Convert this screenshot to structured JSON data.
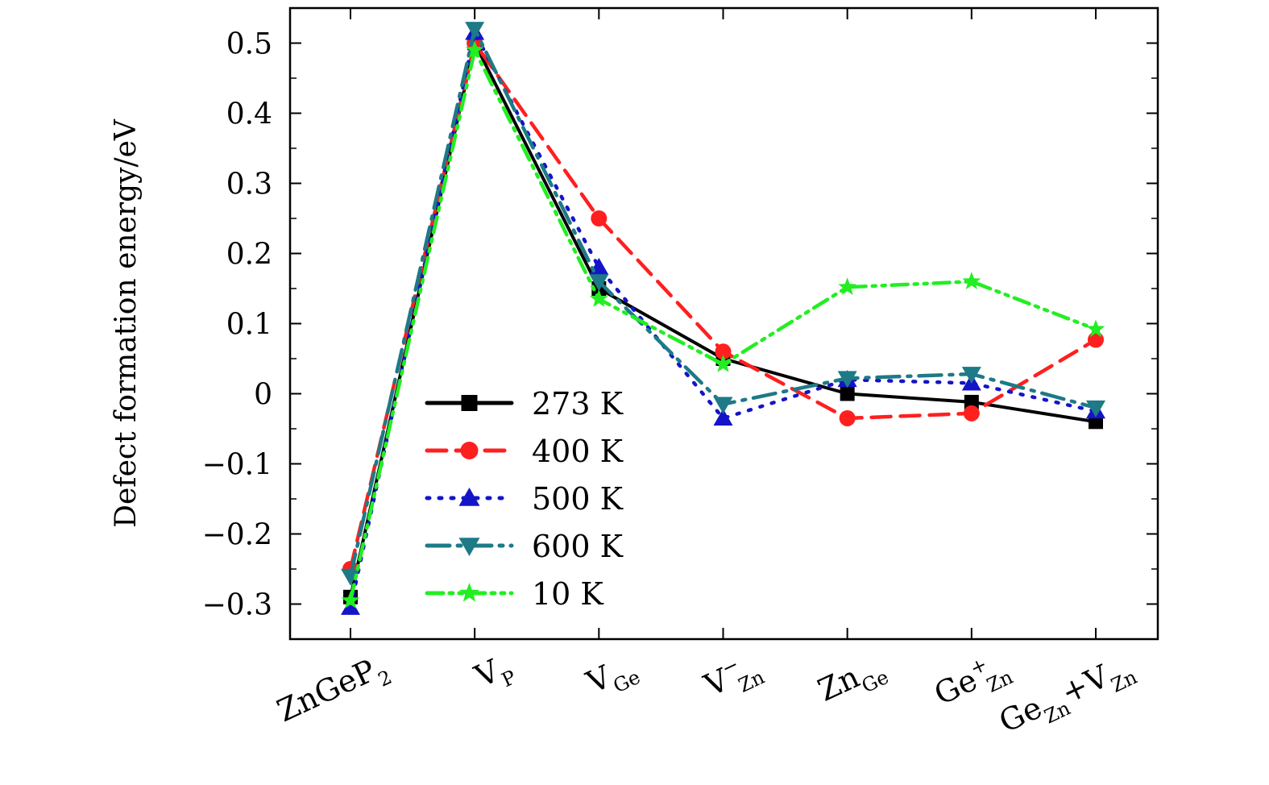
{
  "chart_data": {
    "type": "line",
    "ylabel": "Defect formation energy/eV",
    "xlabel": "",
    "ylim": [
      -0.35,
      0.55
    ],
    "yticks": [
      -0.3,
      -0.2,
      -0.1,
      0,
      0.1,
      0.2,
      0.3,
      0.4,
      0.5
    ],
    "ytick_labels": [
      "−0.3",
      "−0.2",
      "−0.1",
      "0",
      "0.1",
      "0.2",
      "0.3",
      "0.4",
      "0.5"
    ],
    "categories": [
      {
        "main": "ZnGeP",
        "sub": "2",
        "sup": ""
      },
      {
        "main": "V",
        "sub": "P",
        "sup": ""
      },
      {
        "main": "V",
        "sub": "Ge",
        "sup": ""
      },
      {
        "main": "V",
        "sub": "Zn",
        "sup": "−"
      },
      {
        "main": "Zn",
        "sub": "Ge",
        "sup": ""
      },
      {
        "main": "Ge",
        "sub": "Zn",
        "sup": "+"
      },
      {
        "main": "Ge",
        "sub": "Zn",
        "sup": "",
        "main2": "+V",
        "sub2": "Zn"
      }
    ],
    "grid": false,
    "legend_position": "lower-left",
    "series": [
      {
        "name": "273 K",
        "color": "#000000",
        "marker": "square",
        "dash": "",
        "values": [
          -0.29,
          0.5,
          0.15,
          0.05,
          0.0,
          -0.012,
          -0.04
        ]
      },
      {
        "name": "400 K",
        "color": "#ff1f1f",
        "marker": "circle",
        "dash": "24 12",
        "values": [
          -0.25,
          0.5,
          0.25,
          0.06,
          -0.035,
          -0.028,
          0.077
        ]
      },
      {
        "name": "500 K",
        "color": "#1414c8",
        "marker": "triangle-up",
        "dash": "3 12",
        "values": [
          -0.305,
          0.515,
          0.18,
          -0.035,
          0.02,
          0.015,
          -0.025
        ]
      },
      {
        "name": "600 K",
        "color": "#1d7a86",
        "marker": "triangle-down",
        "dash": "28 10 4 10",
        "values": [
          -0.26,
          0.52,
          0.16,
          -0.015,
          0.022,
          0.028,
          -0.02
        ]
      },
      {
        "name": "10 K",
        "color": "#22ee22",
        "marker": "star",
        "dash": "20 8 4 8 4 8",
        "values": [
          -0.295,
          0.49,
          0.135,
          0.042,
          0.152,
          0.16,
          0.092
        ]
      }
    ]
  }
}
